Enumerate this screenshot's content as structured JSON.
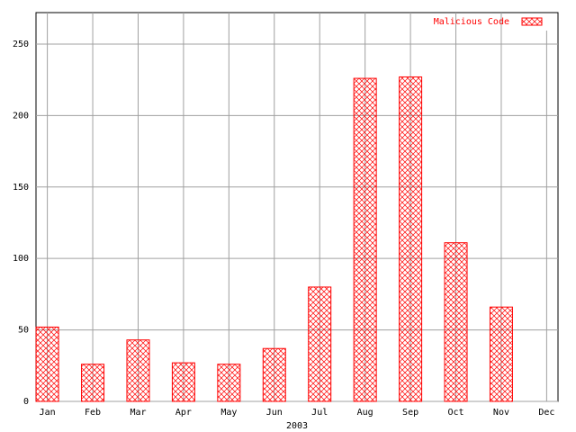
{
  "chart_data": {
    "type": "bar",
    "x_label": "2003",
    "categories": [
      "Jan",
      "Feb",
      "Mar",
      "Apr",
      "May",
      "Jun",
      "Jul",
      "Aug",
      "Sep",
      "Oct",
      "Nov",
      "Dec"
    ],
    "series": [
      {
        "name": "Malicious Code",
        "color": "#ff0000",
        "values": [
          52,
          26,
          43,
          27,
          26,
          37,
          80,
          226,
          227,
          111,
          66,
          0
        ]
      }
    ],
    "ylim": [
      0,
      272
    ],
    "yticks": [
      0,
      50,
      100,
      150,
      200,
      250
    ],
    "grid": true,
    "legend": "top-right"
  }
}
